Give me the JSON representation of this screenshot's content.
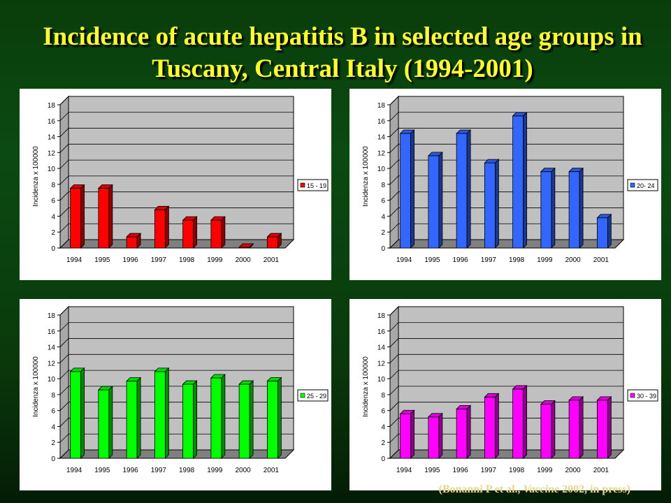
{
  "title": "Incidence of acute hepatitis B in selected age groups in Tuscany, Central Italy (1994-2001)",
  "citation": {
    "prefix": "(Bonanni P et al., ",
    "journal": "Vaccine",
    "suffix": " 2002, in press)"
  },
  "colors": {
    "title": "#ffff33",
    "citation": "#e8d38a",
    "plot_wall": "#c0c0c0",
    "plot_floor": "#808080"
  },
  "chart_data": [
    {
      "type": "bar",
      "ylabel": "Incidenza x 100000",
      "ylim": [
        0,
        18
      ],
      "yticks": [
        0,
        2,
        4,
        6,
        8,
        10,
        12,
        14,
        16,
        18
      ],
      "categories": [
        "1994",
        "1995",
        "1996",
        "1997",
        "1998",
        "1999",
        "2000",
        "2001"
      ],
      "series": [
        {
          "name": "15 - 19",
          "values": [
            7.5,
            7.5,
            1.4,
            4.8,
            3.5,
            3.5,
            0.1,
            1.4
          ],
          "color": "#ff0000"
        }
      ],
      "legend": "right",
      "grid": true
    },
    {
      "type": "bar",
      "ylabel": "Incidenza x 100000",
      "ylim": [
        0,
        18
      ],
      "yticks": [
        0,
        2,
        4,
        6,
        8,
        10,
        12,
        14,
        16,
        18
      ],
      "categories": [
        "1994",
        "1995",
        "1996",
        "1997",
        "1998",
        "1999",
        "2000",
        "2001"
      ],
      "series": [
        {
          "name": "20- 24",
          "values": [
            14.4,
            11.6,
            14.4,
            10.7,
            16.6,
            9.6,
            9.6,
            3.8
          ],
          "color": "#3366ff"
        }
      ],
      "legend": "right",
      "grid": true
    },
    {
      "type": "bar",
      "ylabel": "Incidenza x 100000",
      "ylim": [
        0,
        18
      ],
      "yticks": [
        0,
        2,
        4,
        6,
        8,
        10,
        12,
        14,
        16,
        18
      ],
      "categories": [
        "1994",
        "1995",
        "1996",
        "1997",
        "1998",
        "1999",
        "2000",
        "2001"
      ],
      "series": [
        {
          "name": "25 - 29",
          "values": [
            10.9,
            8.6,
            9.7,
            10.9,
            9.3,
            10.1,
            9.3,
            9.7
          ],
          "color": "#00ff00"
        }
      ],
      "legend": "right",
      "grid": true
    },
    {
      "type": "bar",
      "ylabel": "Incidenza x 100000",
      "ylim": [
        0,
        18
      ],
      "yticks": [
        0,
        2,
        4,
        6,
        8,
        10,
        12,
        14,
        16,
        18
      ],
      "categories": [
        "1994",
        "1995",
        "1996",
        "1997",
        "1998",
        "1999",
        "2000",
        "2001"
      ],
      "series": [
        {
          "name": "30 - 39",
          "values": [
            5.6,
            5.2,
            6.2,
            7.7,
            8.7,
            6.8,
            7.3,
            7.3
          ],
          "color": "#ff00ff"
        }
      ],
      "legend": "right",
      "grid": true
    }
  ]
}
